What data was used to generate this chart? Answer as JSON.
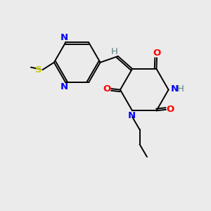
{
  "background_color": "#ebebeb",
  "atom_colors": {
    "N": "#0000ff",
    "O": "#ff0000",
    "S": "#cccc00",
    "H": "#5f8080"
  },
  "figsize": [
    3.0,
    3.0
  ],
  "dpi": 100,
  "lw": 1.4,
  "fs": 9.5
}
